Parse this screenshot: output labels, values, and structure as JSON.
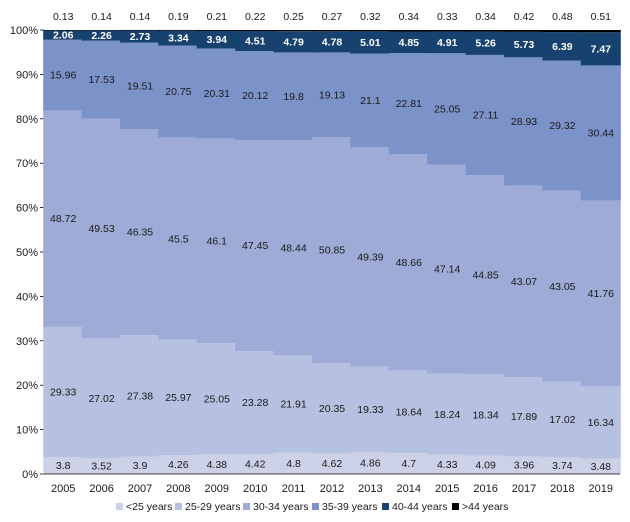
{
  "chart_data": {
    "type": "bar",
    "stacked": true,
    "percent": true,
    "categories": [
      "2005",
      "2006",
      "2007",
      "2008",
      "2009",
      "2010",
      "2011",
      "2012",
      "2013",
      "2014",
      "2015",
      "2016",
      "2017",
      "2018",
      "2019"
    ],
    "series": [
      {
        "name": "<25 years",
        "color": "#ccd1e8",
        "values": [
          3.8,
          3.52,
          3.9,
          4.26,
          4.38,
          4.42,
          4.8,
          4.62,
          4.86,
          4.7,
          4.33,
          4.09,
          3.96,
          3.74,
          3.48
        ]
      },
      {
        "name": "25-29 years",
        "color": "#b6c0e0",
        "values": [
          29.33,
          27.02,
          27.38,
          25.97,
          25.05,
          23.28,
          21.91,
          20.35,
          19.33,
          18.64,
          18.24,
          18.34,
          17.89,
          17.02,
          16.34
        ]
      },
      {
        "name": "30-34 years",
        "color": "#9dabd6",
        "values": [
          48.72,
          49.53,
          46.35,
          45.5,
          46.1,
          47.45,
          48.44,
          50.85,
          49.39,
          48.66,
          47.14,
          44.85,
          43.07,
          43.05,
          41.76
        ]
      },
      {
        "name": "35-39 years",
        "color": "#7b93c8",
        "values": [
          15.96,
          17.53,
          19.51,
          20.75,
          20.31,
          20.12,
          19.8,
          19.13,
          21.1,
          22.81,
          25.05,
          27.11,
          28.93,
          29.32,
          30.44
        ]
      },
      {
        "name": "40-44 years",
        "color": "#17416e",
        "values": [
          2.06,
          2.26,
          2.73,
          3.34,
          3.94,
          4.51,
          4.79,
          4.78,
          5.01,
          4.85,
          4.91,
          5.26,
          5.73,
          6.39,
          7.47
        ]
      },
      {
        "name": ">44 years",
        "color": "#000000",
        "values": [
          0.13,
          0.14,
          0.14,
          0.19,
          0.21,
          0.22,
          0.25,
          0.27,
          0.32,
          0.34,
          0.33,
          0.34,
          0.42,
          0.48,
          0.51
        ]
      }
    ],
    "yticks": [
      "0%",
      "10%",
      "20%",
      "30%",
      "40%",
      "50%",
      "60%",
      "70%",
      "80%",
      "90%",
      "100%"
    ],
    "ylim": [
      0,
      100
    ],
    "legend_position": "bottom",
    "grid": false
  }
}
